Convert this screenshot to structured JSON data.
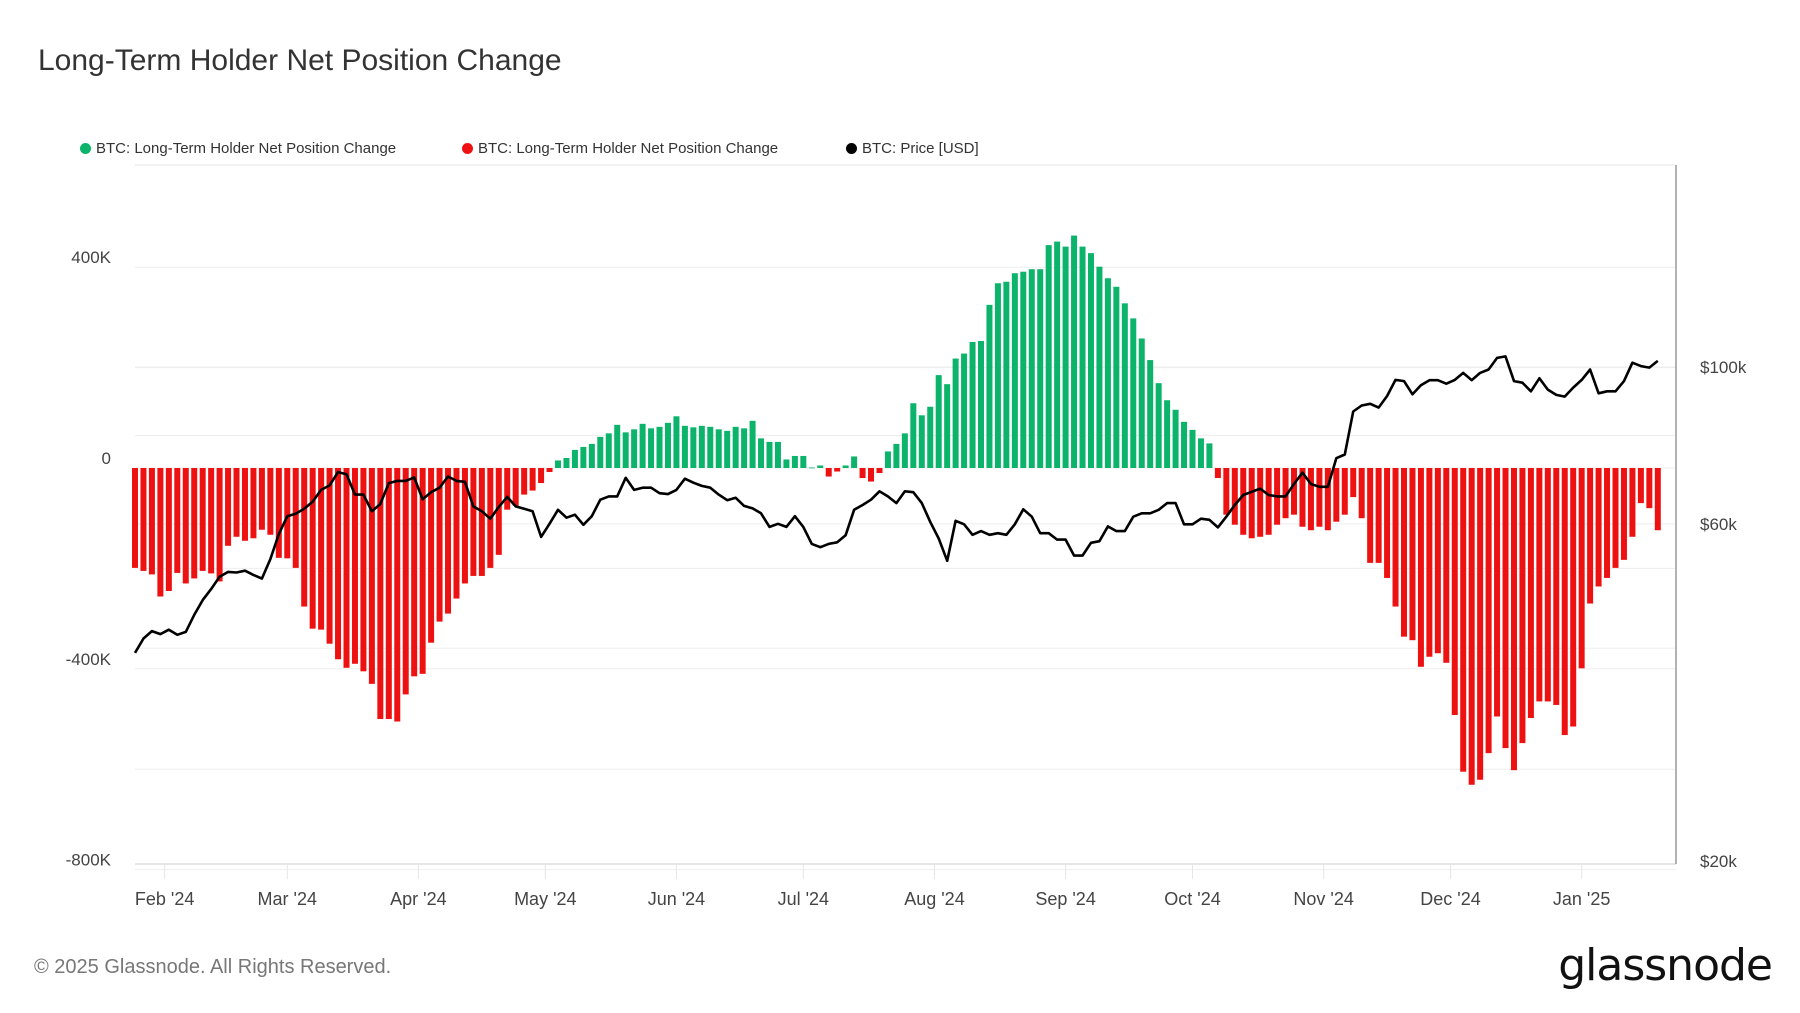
{
  "title": "Long-Term Holder Net Position Change",
  "footer": "© 2025 Glassnode. All Rights Reserved.",
  "logo_text": "glassnode",
  "colors": {
    "positive": "#0bb36b",
    "negative": "#ee1111",
    "price": "#000000",
    "grid": "#eeeeee"
  },
  "chart_data": {
    "type": "bar+line",
    "title": "Long-Term Holder Net Position Change",
    "legend_position": "top-left",
    "grid": true,
    "legend": [
      {
        "name": "BTC: Long-Term Holder Net Position Change",
        "color": "#0bb36b"
      },
      {
        "name": "BTC: Long-Term Holder Net Position Change",
        "color": "#ee1111"
      },
      {
        "name": "BTC: Price [USD]",
        "color": "#000000"
      }
    ],
    "y_left": {
      "range": [
        -800000,
        460000
      ],
      "ticks": [
        400000,
        0,
        -400000,
        -800000
      ],
      "tick_labels": [
        "400K",
        "0",
        "-400K",
        "-800K"
      ]
    },
    "y_right": {
      "scale": "log",
      "ticks": [
        100000,
        60000,
        20000
      ],
      "tick_labels": [
        "$100k",
        "$60k",
        "$20k"
      ]
    },
    "x_ticks": [
      {
        "label": "Feb '24",
        "date": "2024-02-01"
      },
      {
        "label": "Mar '24",
        "date": "2024-03-01"
      },
      {
        "label": "Apr '24",
        "date": "2024-04-01"
      },
      {
        "label": "May '24",
        "date": "2024-05-01"
      },
      {
        "label": "Jun '24",
        "date": "2024-06-01"
      },
      {
        "label": "Jul '24",
        "date": "2024-07-01"
      },
      {
        "label": "Aug '24",
        "date": "2024-08-01"
      },
      {
        "label": "Sep '24",
        "date": "2024-09-01"
      },
      {
        "label": "Oct '24",
        "date": "2024-10-01"
      },
      {
        "label": "Nov '24",
        "date": "2024-11-01"
      },
      {
        "label": "Dec '24",
        "date": "2024-12-01"
      },
      {
        "label": "Jan '25",
        "date": "2025-01-01"
      }
    ],
    "x": [
      "2024-01-25",
      "2024-01-27",
      "2024-01-29",
      "2024-01-31",
      "2024-02-02",
      "2024-02-04",
      "2024-02-06",
      "2024-02-08",
      "2024-02-10",
      "2024-02-12",
      "2024-02-14",
      "2024-02-16",
      "2024-02-18",
      "2024-02-20",
      "2024-02-22",
      "2024-02-24",
      "2024-02-26",
      "2024-02-28",
      "2024-03-01",
      "2024-03-03",
      "2024-03-05",
      "2024-03-07",
      "2024-03-09",
      "2024-03-11",
      "2024-03-13",
      "2024-03-15",
      "2024-03-17",
      "2024-03-19",
      "2024-03-21",
      "2024-03-23",
      "2024-03-25",
      "2024-03-27",
      "2024-03-29",
      "2024-03-31",
      "2024-04-02",
      "2024-04-04",
      "2024-04-06",
      "2024-04-08",
      "2024-04-10",
      "2024-04-12",
      "2024-04-14",
      "2024-04-16",
      "2024-04-18",
      "2024-04-20",
      "2024-04-22",
      "2024-04-24",
      "2024-04-26",
      "2024-04-28",
      "2024-04-30",
      "2024-05-02",
      "2024-05-04",
      "2024-05-06",
      "2024-05-08",
      "2024-05-10",
      "2024-05-12",
      "2024-05-14",
      "2024-05-16",
      "2024-05-18",
      "2024-05-20",
      "2024-05-22",
      "2024-05-24",
      "2024-05-26",
      "2024-05-28",
      "2024-05-30",
      "2024-06-01",
      "2024-06-03",
      "2024-06-05",
      "2024-06-07",
      "2024-06-09",
      "2024-06-11",
      "2024-06-13",
      "2024-06-15",
      "2024-06-17",
      "2024-06-19",
      "2024-06-21",
      "2024-06-23",
      "2024-06-25",
      "2024-06-27",
      "2024-06-29",
      "2024-07-01",
      "2024-07-03",
      "2024-07-05",
      "2024-07-07",
      "2024-07-09",
      "2024-07-11",
      "2024-07-13",
      "2024-07-15",
      "2024-07-17",
      "2024-07-19",
      "2024-07-21",
      "2024-07-23",
      "2024-07-25",
      "2024-07-27",
      "2024-07-29",
      "2024-07-31",
      "2024-08-02",
      "2024-08-04",
      "2024-08-06",
      "2024-08-08",
      "2024-08-10",
      "2024-08-12",
      "2024-08-14",
      "2024-08-16",
      "2024-08-18",
      "2024-08-20",
      "2024-08-22",
      "2024-08-24",
      "2024-08-26",
      "2024-08-28",
      "2024-08-30",
      "2024-09-01",
      "2024-09-03",
      "2024-09-05",
      "2024-09-07",
      "2024-09-09",
      "2024-09-11",
      "2024-09-13",
      "2024-09-15",
      "2024-09-17",
      "2024-09-19",
      "2024-09-21",
      "2024-09-23",
      "2024-09-25",
      "2024-09-27",
      "2024-09-29",
      "2024-10-01",
      "2024-10-03",
      "2024-10-05",
      "2024-10-07",
      "2024-10-09",
      "2024-10-11",
      "2024-10-13",
      "2024-10-15",
      "2024-10-17",
      "2024-10-19",
      "2024-10-21",
      "2024-10-23",
      "2024-10-25",
      "2024-10-27",
      "2024-10-29",
      "2024-10-31",
      "2024-11-02",
      "2024-11-04",
      "2024-11-06",
      "2024-11-08",
      "2024-11-10",
      "2024-11-12",
      "2024-11-14",
      "2024-11-16",
      "2024-11-18",
      "2024-11-20",
      "2024-11-22",
      "2024-11-24",
      "2024-11-26",
      "2024-11-28",
      "2024-11-30",
      "2024-12-02",
      "2024-12-04",
      "2024-12-06",
      "2024-12-08",
      "2024-12-10",
      "2024-12-12",
      "2024-12-14",
      "2024-12-16",
      "2024-12-18",
      "2024-12-20",
      "2024-12-22",
      "2024-12-24",
      "2024-12-26",
      "2024-12-28",
      "2024-12-30",
      "2025-01-01",
      "2025-01-03",
      "2025-01-05",
      "2025-01-07",
      "2025-01-09",
      "2025-01-11",
      "2025-01-13",
      "2025-01-15",
      "2025-01-17",
      "2025-01-19"
    ],
    "series": [
      {
        "name": "BTC: Long-Term Holder Net Position Change",
        "axis": "left",
        "type": "bar",
        "unit": "BTC",
        "values": [
          -199000,
          -205000,
          -212000,
          -256000,
          -245000,
          -209000,
          -230000,
          -220000,
          -205000,
          -210000,
          -226000,
          -155000,
          -137000,
          -145000,
          -140000,
          -123000,
          -133000,
          -179000,
          -180000,
          -199000,
          -276000,
          -320000,
          -322000,
          -350000,
          -381000,
          -398000,
          -390000,
          -405000,
          -430000,
          -500000,
          -500000,
          -505000,
          -451000,
          -415000,
          -410000,
          -348000,
          -306000,
          -290000,
          -260000,
          -230000,
          -215000,
          -215000,
          -199000,
          -173000,
          -83000,
          -75000,
          -53000,
          -45000,
          -30000,
          -8000,
          15000,
          20000,
          36000,
          42000,
          48000,
          62000,
          69000,
          86000,
          71000,
          77000,
          88000,
          79000,
          82000,
          90000,
          103000,
          84000,
          81000,
          84000,
          82000,
          77000,
          74000,
          82000,
          79000,
          94000,
          59000,
          52000,
          52000,
          17000,
          24000,
          24000,
          1000,
          5000,
          -17000,
          -7000,
          5000,
          23000,
          -20000,
          -27000,
          -10000,
          33000,
          48000,
          69000,
          129000,
          105000,
          122000,
          185000,
          167000,
          218000,
          228000,
          251000,
          253000,
          325000,
          368000,
          371000,
          388000,
          391000,
          396000,
          396000,
          444000,
          451000,
          441000,
          463000,
          441000,
          428000,
          401000,
          378000,
          361000,
          328000,
          298000,
          258000,
          215000,
          169000,
          135000,
          116000,
          92000,
          76000,
          59000,
          49000,
          -20000,
          -93000,
          -113000,
          -133000,
          -140000,
          -137000,
          -133000,
          -113000,
          -100000,
          -93000,
          -117000,
          -124000,
          -117000,
          -124000,
          -107000,
          -93000,
          -58000,
          -100000,
          -189000,
          -189000,
          -219000,
          -276000,
          -336000,
          -343000,
          -396000,
          -376000,
          -369000,
          -388000,
          -492000,
          -605000,
          -631000,
          -621000,
          -568000,
          -495000,
          -558000,
          -602000,
          -548000,
          -498000,
          -465000,
          -465000,
          -472000,
          -532000,
          -515000,
          -399000,
          -270000,
          -236000,
          -219000,
          -199000,
          -183000,
          -137000,
          -70000,
          -80000,
          -124000
        ]
      },
      {
        "name": "BTC: Price [USD]",
        "axis": "right",
        "type": "line",
        "unit": "USD",
        "values": [
          39400,
          41300,
          42300,
          41900,
          42500,
          41800,
          42200,
          44600,
          46800,
          48500,
          50500,
          51300,
          51200,
          51500,
          50800,
          50200,
          53500,
          58000,
          61500,
          62000,
          63000,
          64500,
          67000,
          68000,
          71000,
          70500,
          66000,
          66000,
          62500,
          64000,
          68500,
          69000,
          69000,
          69800,
          65000,
          66500,
          67500,
          70000,
          69000,
          68800,
          63500,
          62500,
          61000,
          63400,
          65500,
          63500,
          63000,
          62500,
          57500,
          60000,
          62800,
          61200,
          61800,
          59800,
          61500,
          64900,
          65600,
          65600,
          69700,
          67000,
          67500,
          67500,
          66300,
          66100,
          67000,
          69500,
          68600,
          67900,
          67500,
          66000,
          64800,
          65300,
          63600,
          63100,
          62100,
          59400,
          60000,
          59400,
          61500,
          59400,
          56200,
          55600,
          56200,
          56500,
          57800,
          62800,
          63800,
          64900,
          66700,
          65600,
          64200,
          66700,
          66500,
          64200,
          60400,
          57200,
          53200,
          60600,
          59900,
          57900,
          58600,
          57900,
          58200,
          57900,
          59900,
          62900,
          61400,
          58200,
          58200,
          57000,
          57000,
          54100,
          54100,
          56400,
          56700,
          59500,
          58600,
          58600,
          61400,
          62100,
          62100,
          62800,
          64200,
          64200,
          59900,
          59900,
          61000,
          60800,
          59300,
          61400,
          63800,
          65900,
          66600,
          67300,
          65900,
          65600,
          65600,
          68300,
          70900,
          68300,
          67700,
          67700,
          74300,
          75200,
          86500,
          88200,
          88700,
          87600,
          91000,
          95900,
          95500,
          91500,
          94200,
          95800,
          95800,
          94700,
          95900,
          98100,
          95800,
          98100,
          99200,
          103000,
          103500,
          95500,
          95000,
          92400,
          96400,
          92900,
          91300,
          90800,
          93500,
          95900,
          99200,
          91800,
          92400,
          92400,
          95500,
          101400,
          100300,
          99800,
          102000
        ]
      }
    ]
  }
}
